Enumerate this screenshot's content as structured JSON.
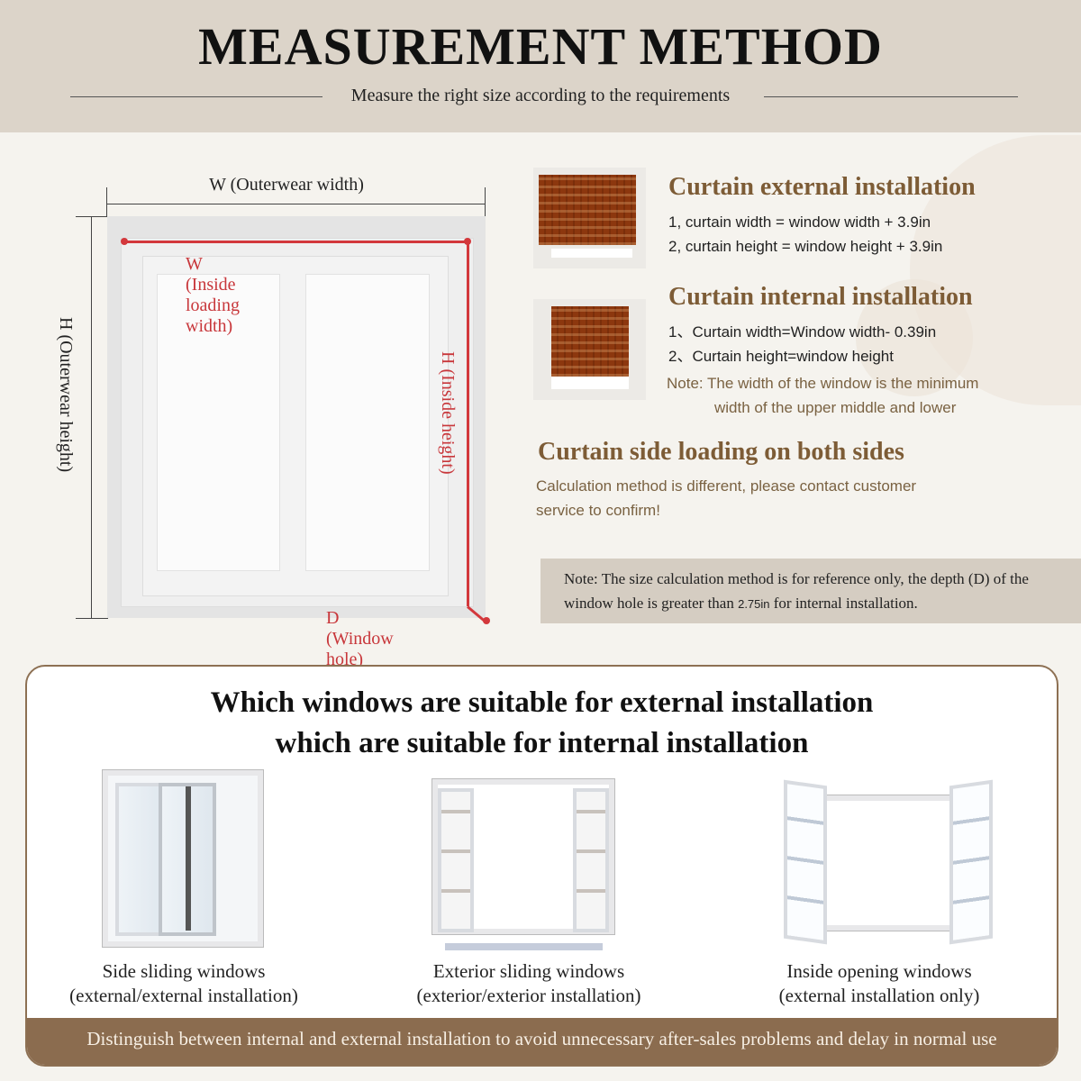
{
  "header": {
    "title": "MEASUREMENT METHOD",
    "subtitle": "Measure the right size according to the requirements"
  },
  "diagram": {
    "outer_width": "W  (Outerwear width)",
    "outer_height": "H  (Outerwear height)",
    "inside_width": "W  (Inside loading width)",
    "inside_height": "H  (Inside height)",
    "depth": "D  (Window hole)"
  },
  "external": {
    "title": "Curtain external installation",
    "lines": [
      "1, curtain width = window width + 3.9in",
      "2, curtain height = window height + 3.9in"
    ]
  },
  "internal": {
    "title": "Curtain internal installation",
    "lines": [
      "1、Curtain width=Window width- 0.39in",
      "2、Curtain height=window height"
    ],
    "note_line1": "Note: The width of the window is the minimum",
    "note_line2": "width of the upper middle and lower"
  },
  "side": {
    "title": "Curtain side loading on both sides",
    "line1": "Calculation method is different, please contact customer",
    "line2": "service to confirm!"
  },
  "note": {
    "line1": "Note: The size calculation method is for reference only, the depth (D) of the",
    "line2_a": "window hole is greater than ",
    "line2_value": "2.75in",
    "line2_b": " for internal installation."
  },
  "suitability": {
    "title_line1": "Which windows are suitable for external installation",
    "title_line2": "which are suitable for internal installation",
    "items": [
      {
        "name": "Side sliding windows",
        "detail": "(external/external installation)"
      },
      {
        "name": "Exterior sliding windows",
        "detail": "(exterior/exterior installation)"
      },
      {
        "name": "Inside opening windows",
        "detail": "(external installation only)"
      }
    ],
    "footer": "Distinguish between internal and external installation to avoid unnecessary after-sales problems and delay in normal use"
  },
  "colors": {
    "accent_brown": "#8b6c4f",
    "heading_brown": "#7d5c36",
    "measure_red": "#c8373b",
    "header_bg": "#dcd4c9"
  }
}
